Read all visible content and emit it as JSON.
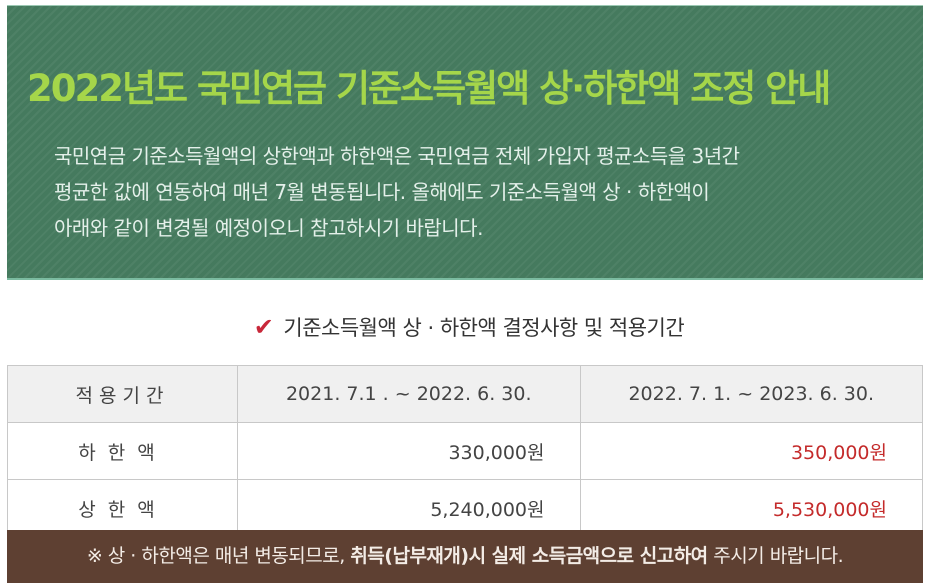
{
  "banner": {
    "title": "2022년도 국민연금 기준소득월액 상·하한액 조정 안내",
    "desc_lines": [
      "국민연금 기준소득월액의 상한액과 하한액은 국민연금 전체 가입자 평균소득을 3년간",
      "평균한 값에 연동하여 매년 7월 변동됩니다. 올해에도 기준소득월액 상 · 하한액이",
      "아래와 같이 변경될 예정이오니 참고하시기 바랍니다."
    ],
    "bg_color": "#457a5e",
    "title_color": "#a5d64a"
  },
  "subheading": {
    "icon": "checkmark-icon",
    "text": "기준소득월액 상 · 하한액 결정사항 및 적용기간"
  },
  "table": {
    "headers": [
      "적용기간",
      "2021. 7.1 . ~ 2022. 6. 30.",
      "2022. 7. 1. ~ 2023. 6. 30."
    ],
    "rows": [
      {
        "label": "하한액",
        "prev": "330,000원",
        "next": "350,000원"
      },
      {
        "label": "상한액",
        "prev": "5,240,000원",
        "next": "5,530,000원"
      }
    ],
    "highlight_color": "#c42b2b"
  },
  "footer": {
    "prefix": "※ 상 · 하한액은 매년 변동되므로, ",
    "bold": "취득(납부재개)시 실제 소득금액으로 신고하여",
    "suffix": " 주시기 바랍니다.",
    "bg_color": "#5e4032"
  }
}
